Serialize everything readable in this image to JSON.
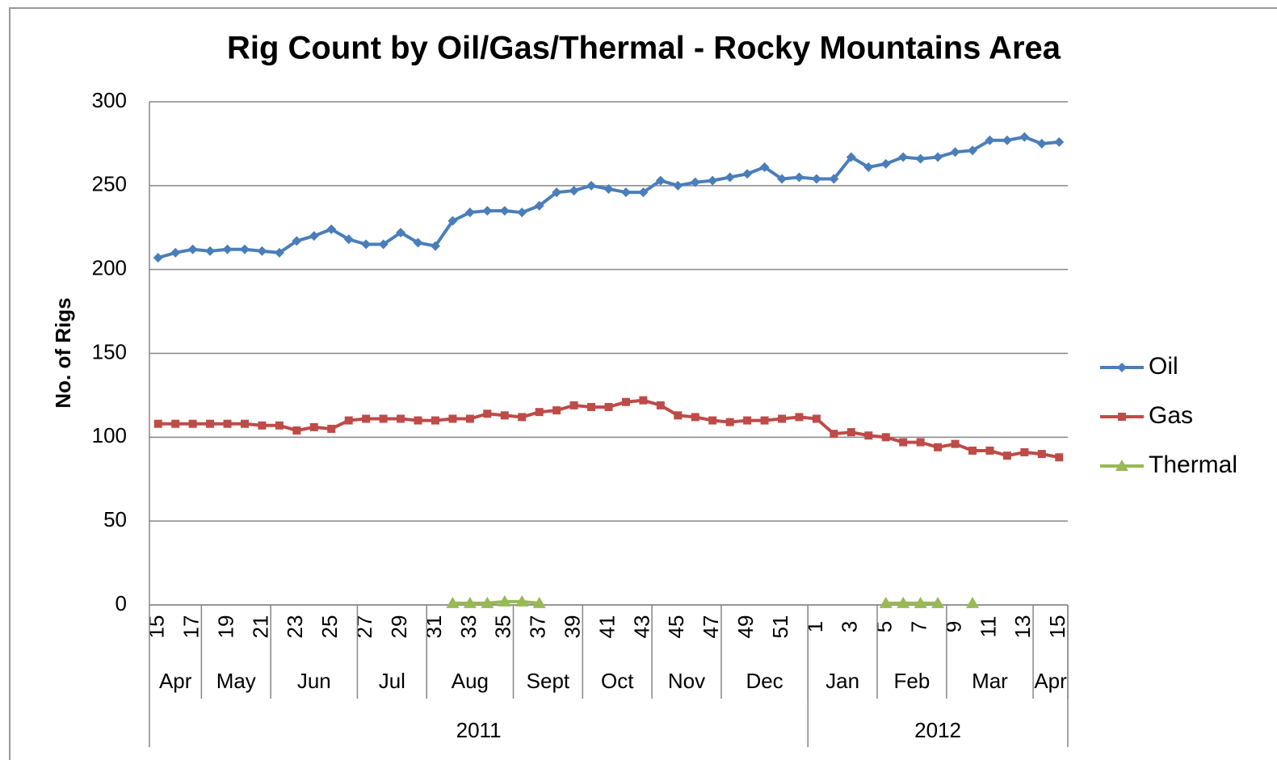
{
  "chart_data": {
    "type": "line",
    "title": "Rig Count by Oil/Gas/Thermal - Rocky Mountains Area",
    "y_label": "No. of Rigs",
    "categories": [
      "15",
      null,
      "17",
      null,
      "19",
      null,
      "21",
      null,
      "23",
      null,
      "25",
      null,
      "27",
      null,
      "29",
      null,
      "31",
      null,
      "33",
      null,
      "35",
      null,
      "37",
      null,
      "39",
      null,
      "41",
      null,
      "43",
      null,
      "45",
      null,
      "47",
      null,
      "49",
      null,
      "51",
      null,
      "1",
      null,
      "3",
      null,
      "5",
      null,
      "7",
      null,
      "9",
      null,
      "11",
      null,
      "13",
      null,
      "15"
    ],
    "months": [
      "Apr",
      "Apr",
      "Apr",
      "May",
      "May",
      "May",
      "May",
      "Jun",
      "Jun",
      "Jun",
      "Jun",
      "Jun",
      "Jul",
      "Jul",
      "Jul",
      "Jul",
      "Aug",
      "Aug",
      "Aug",
      "Aug",
      "Aug",
      "Sept",
      "Sept",
      "Sept",
      "Sept",
      "Oct",
      "Oct",
      "Oct",
      "Oct",
      "Nov",
      "Nov",
      "Nov",
      "Nov",
      "Dec",
      "Dec",
      "Dec",
      "Dec",
      "Dec",
      "Jan",
      "Jan",
      "Jan",
      "Jan",
      "Feb",
      "Feb",
      "Feb",
      "Feb",
      "Mar",
      "Mar",
      "Mar",
      "Mar",
      "Mar",
      "Apr",
      "Apr"
    ],
    "years": [
      "2011",
      "2011",
      "2011",
      "2011",
      "2011",
      "2011",
      "2011",
      "2011",
      "2011",
      "2011",
      "2011",
      "2011",
      "2011",
      "2011",
      "2011",
      "2011",
      "2011",
      "2011",
      "2011",
      "2011",
      "2011",
      "2011",
      "2011",
      "2011",
      "2011",
      "2011",
      "2011",
      "2011",
      "2011",
      "2011",
      "2011",
      "2011",
      "2011",
      "2011",
      "2011",
      "2011",
      "2011",
      "2011",
      "2012",
      "2012",
      "2012",
      "2012",
      "2012",
      "2012",
      "2012",
      "2012",
      "2012",
      "2012",
      "2012",
      "2012",
      "2012",
      "2012",
      "2012"
    ],
    "series": [
      {
        "name": "Oil",
        "color": "#4a7ebb",
        "marker": "diamond",
        "values": [
          207,
          210,
          212,
          211,
          212,
          212,
          211,
          210,
          217,
          220,
          224,
          218,
          215,
          215,
          222,
          216,
          214,
          229,
          234,
          235,
          235,
          234,
          238,
          246,
          247,
          250,
          248,
          246,
          246,
          253,
          250,
          252,
          253,
          255,
          257,
          261,
          254,
          255,
          254,
          254,
          267,
          261,
          263,
          267,
          266,
          267,
          270,
          271,
          277,
          277,
          279,
          275,
          276
        ]
      },
      {
        "name": "Gas",
        "color": "#be4b48",
        "marker": "square",
        "values": [
          108,
          108,
          108,
          108,
          108,
          108,
          107,
          107,
          104,
          106,
          105,
          110,
          111,
          111,
          111,
          110,
          110,
          111,
          111,
          114,
          113,
          112,
          115,
          116,
          119,
          118,
          118,
          121,
          122,
          119,
          113,
          112,
          110,
          109,
          110,
          110,
          111,
          112,
          111,
          102,
          103,
          101,
          100,
          97,
          97,
          94,
          96,
          92,
          92,
          89,
          91,
          90,
          88
        ]
      },
      {
        "name": "Thermal",
        "color": "#98b954",
        "marker": "triangle",
        "values": [
          null,
          null,
          null,
          null,
          null,
          null,
          null,
          null,
          null,
          null,
          null,
          null,
          null,
          null,
          null,
          null,
          null,
          1,
          1,
          1,
          2,
          2,
          1,
          null,
          null,
          null,
          null,
          null,
          null,
          null,
          null,
          null,
          null,
          null,
          null,
          null,
          null,
          null,
          null,
          null,
          null,
          null,
          1,
          1,
          1,
          1,
          null,
          1,
          null,
          null,
          null,
          null,
          null
        ]
      }
    ],
    "ylim": [
      0,
      300
    ],
    "yticks": [
      0,
      50,
      100,
      150,
      200,
      250,
      300
    ],
    "grid": true,
    "legend": "right"
  }
}
